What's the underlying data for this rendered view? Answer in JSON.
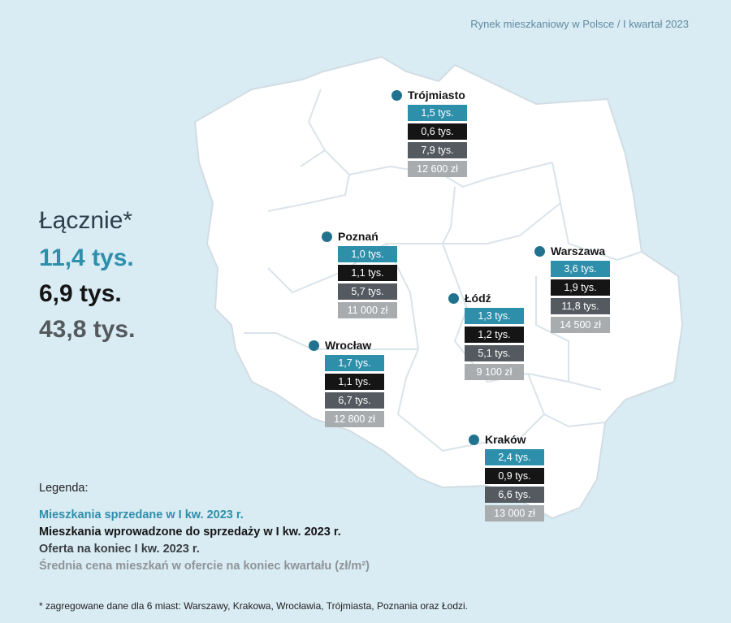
{
  "header": "Rynek mieszkaniowy w Polsce / I kwartał 2023",
  "totals": {
    "label": "Łącznie*",
    "sold": "11,4 tys.",
    "introduced": "6,9 tys.",
    "offer": "43,8 tys."
  },
  "cities": {
    "trojmiasto": {
      "name": "Trójmiasto",
      "sold": "1,5 tys.",
      "introduced": "0,6 tys.",
      "offer": "7,9 tys.",
      "price": "12 600 zł"
    },
    "poznan": {
      "name": "Poznań",
      "sold": "1,0 tys.",
      "introduced": "1,1 tys.",
      "offer": "5,7 tys.",
      "price": "11 000 zł"
    },
    "warszawa": {
      "name": "Warszawa",
      "sold": "3,6 tys.",
      "introduced": "1,9 tys.",
      "offer": "11,8 tys.",
      "price": "14 500 zł"
    },
    "lodz": {
      "name": "Łódź",
      "sold": "1,3 tys.",
      "introduced": "1,2 tys.",
      "offer": "5,1 tys.",
      "price": "9 100 zł"
    },
    "wroclaw": {
      "name": "Wrocław",
      "sold": "1,7 tys.",
      "introduced": "1,1 tys.",
      "offer": "6,7 tys.",
      "price": "12 800 zł"
    },
    "krakow": {
      "name": "Kraków",
      "sold": "2,4 tys.",
      "introduced": "0,9 tys.",
      "offer": "6,6 tys.",
      "price": "13 000 zł"
    }
  },
  "legend": {
    "title": "Legenda:",
    "sold": "Mieszkania sprzedane w I kw. 2023 r.",
    "introduced": "Mieszkania wprowadzone do sprzedaży w I kw. 2023 r.",
    "offer": "Oferta na koniec I kw. 2023 r.",
    "price": "Średnia cena mieszkań w ofercie na koniec kwartału (zł/m²)"
  },
  "footnote": "* zagregowane dane dla 6 miast: Warszawy, Krakowa, Wrocławia, Trójmiasta, Poznania oraz Łodzi.",
  "colors": {
    "sold": "#2e8fab",
    "introduced": "#151515",
    "offer": "#545a5f",
    "price": "#a8acaf",
    "background": "#d9ebf3",
    "map_fill": "#ffffff",
    "marker": "#21728e"
  }
}
